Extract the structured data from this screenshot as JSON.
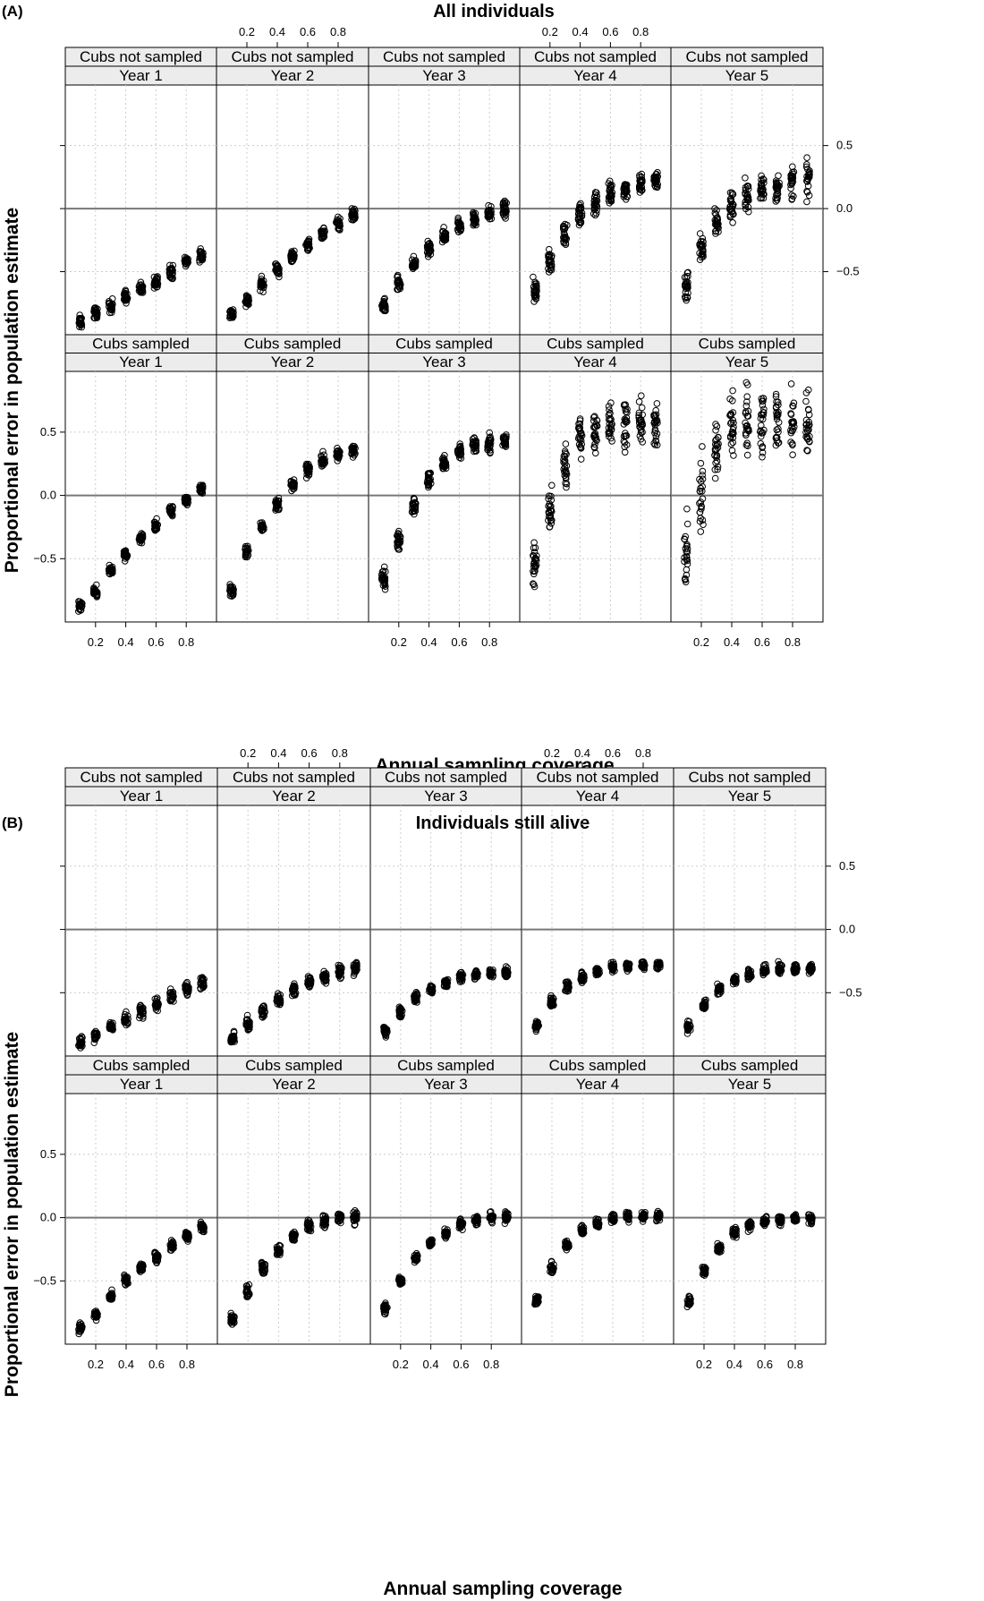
{
  "figure": {
    "panels": [
      {
        "label": "(A)",
        "title": "All individuals",
        "ylabel": "Proportional error in population  estimate",
        "xlabel": "Annual sampling coverage"
      },
      {
        "label": "(B)",
        "title": "Individuals still alive",
        "ylabel": "Proportional error in population estimate",
        "xlabel": "Annual sampling coverage"
      }
    ],
    "strip_top_labels": [
      "Cubs not sampled",
      "Cubs sampled"
    ],
    "year_labels": [
      "Year 1",
      "Year 2",
      "Year 3",
      "Year 4",
      "Year 5"
    ],
    "x_tick_labels": [
      "0.2",
      "0.4",
      "0.6",
      "0.8"
    ],
    "y_tick_labels": [
      "−0.5",
      "0.0",
      "0.5"
    ],
    "colors": {
      "strip_bg": "#ececec",
      "point": "#000000",
      "zero_line": "#777777",
      "grid": "#cccccc"
    }
  },
  "chart_data": [
    {
      "type": "scatter",
      "title": "All individuals",
      "panel": "(A)",
      "xlabel": "Annual sampling coverage",
      "ylabel": "Proportional error in population  estimate",
      "x": [
        0.1,
        0.2,
        0.3,
        0.4,
        0.5,
        0.6,
        0.7,
        0.8,
        0.9
      ],
      "xlim": [
        0,
        1
      ],
      "ylim": [
        -1.0,
        0.98
      ],
      "reference_line_y": 0.0,
      "series": [
        {
          "row": "Cubs not sampled",
          "year": "Year 1",
          "values": [
            -0.9,
            -0.83,
            -0.77,
            -0.7,
            -0.64,
            -0.58,
            -0.5,
            -0.42,
            -0.37
          ],
          "spread": 0.05
        },
        {
          "row": "Cubs not sampled",
          "year": "Year 2",
          "values": [
            -0.83,
            -0.73,
            -0.6,
            -0.48,
            -0.38,
            -0.28,
            -0.2,
            -0.12,
            -0.05
          ],
          "spread": 0.05
        },
        {
          "row": "Cubs not sampled",
          "year": "Year 3",
          "values": [
            -0.78,
            -0.6,
            -0.45,
            -0.32,
            -0.22,
            -0.13,
            -0.08,
            -0.04,
            -0.01
          ],
          "spread": 0.06
        },
        {
          "row": "Cubs not sampled",
          "year": "Year 4",
          "values": [
            -0.65,
            -0.42,
            -0.2,
            -0.05,
            0.05,
            0.12,
            0.16,
            0.2,
            0.22
          ],
          "spread": 0.09
        },
        {
          "row": "Cubs not sampled",
          "year": "Year 5",
          "values": [
            -0.6,
            -0.32,
            -0.1,
            0.02,
            0.1,
            0.15,
            0.18,
            0.2,
            0.22
          ],
          "spread": 0.13
        },
        {
          "row": "Cubs sampled",
          "year": "Year 1",
          "values": [
            -0.87,
            -0.76,
            -0.6,
            -0.47,
            -0.34,
            -0.23,
            -0.12,
            -0.03,
            0.05
          ],
          "spread": 0.04
        },
        {
          "row": "Cubs sampled",
          "year": "Year 2",
          "values": [
            -0.75,
            -0.45,
            -0.25,
            -0.08,
            0.08,
            0.2,
            0.28,
            0.32,
            0.35
          ],
          "spread": 0.05
        },
        {
          "row": "Cubs sampled",
          "year": "Year 3",
          "values": [
            -0.66,
            -0.35,
            -0.08,
            0.12,
            0.25,
            0.35,
            0.4,
            0.42,
            0.42
          ],
          "spread": 0.07
        },
        {
          "row": "Cubs sampled",
          "year": "Year 4",
          "values": [
            -0.53,
            -0.12,
            0.23,
            0.45,
            0.53,
            0.57,
            0.57,
            0.55,
            0.55
          ],
          "spread": 0.18
        },
        {
          "row": "Cubs sampled",
          "year": "Year 5",
          "values": [
            -0.45,
            0.0,
            0.35,
            0.55,
            0.6,
            0.6,
            0.6,
            0.58,
            0.55
          ],
          "spread": 0.28
        }
      ]
    },
    {
      "type": "scatter",
      "title": "Individuals still alive",
      "panel": "(B)",
      "xlabel": "Annual sampling coverage",
      "ylabel": "Proportional error in population estimate",
      "x": [
        0.1,
        0.2,
        0.3,
        0.4,
        0.5,
        0.6,
        0.7,
        0.8,
        0.9
      ],
      "xlim": [
        0,
        1
      ],
      "ylim": [
        -1.0,
        0.98
      ],
      "reference_line_y": 0.0,
      "series": [
        {
          "row": "Cubs not sampled",
          "year": "Year 1",
          "values": [
            -0.9,
            -0.84,
            -0.77,
            -0.71,
            -0.65,
            -0.59,
            -0.53,
            -0.47,
            -0.42
          ],
          "spread": 0.05
        },
        {
          "row": "Cubs not sampled",
          "year": "Year 2",
          "values": [
            -0.87,
            -0.75,
            -0.65,
            -0.56,
            -0.48,
            -0.41,
            -0.37,
            -0.33,
            -0.31
          ],
          "spread": 0.05
        },
        {
          "row": "Cubs not sampled",
          "year": "Year 3",
          "values": [
            -0.8,
            -0.65,
            -0.54,
            -0.47,
            -0.42,
            -0.38,
            -0.36,
            -0.35,
            -0.34
          ],
          "spread": 0.04
        },
        {
          "row": "Cubs not sampled",
          "year": "Year 4",
          "values": [
            -0.76,
            -0.57,
            -0.45,
            -0.38,
            -0.33,
            -0.3,
            -0.29,
            -0.28,
            -0.28
          ],
          "spread": 0.04
        },
        {
          "row": "Cubs not sampled",
          "year": "Year 5",
          "values": [
            -0.77,
            -0.6,
            -0.47,
            -0.4,
            -0.35,
            -0.32,
            -0.31,
            -0.31,
            -0.31
          ],
          "spread": 0.04
        },
        {
          "row": "Cubs sampled",
          "year": "Year 1",
          "values": [
            -0.87,
            -0.77,
            -0.63,
            -0.5,
            -0.4,
            -0.31,
            -0.22,
            -0.15,
            -0.08
          ],
          "spread": 0.04
        },
        {
          "row": "Cubs sampled",
          "year": "Year 2",
          "values": [
            -0.8,
            -0.58,
            -0.4,
            -0.26,
            -0.15,
            -0.07,
            -0.03,
            0.0,
            0.0
          ],
          "spread": 0.05
        },
        {
          "row": "Cubs sampled",
          "year": "Year 3",
          "values": [
            -0.72,
            -0.5,
            -0.32,
            -0.2,
            -0.12,
            -0.05,
            -0.02,
            0.0,
            0.0
          ],
          "spread": 0.04
        },
        {
          "row": "Cubs sampled",
          "year": "Year 4",
          "values": [
            -0.65,
            -0.4,
            -0.22,
            -0.1,
            -0.04,
            0.0,
            0.01,
            0.01,
            0.01
          ],
          "spread": 0.04
        },
        {
          "row": "Cubs sampled",
          "year": "Year 5",
          "values": [
            -0.66,
            -0.42,
            -0.24,
            -0.12,
            -0.06,
            -0.03,
            -0.02,
            -0.01,
            -0.01
          ],
          "spread": 0.04
        }
      ]
    }
  ]
}
